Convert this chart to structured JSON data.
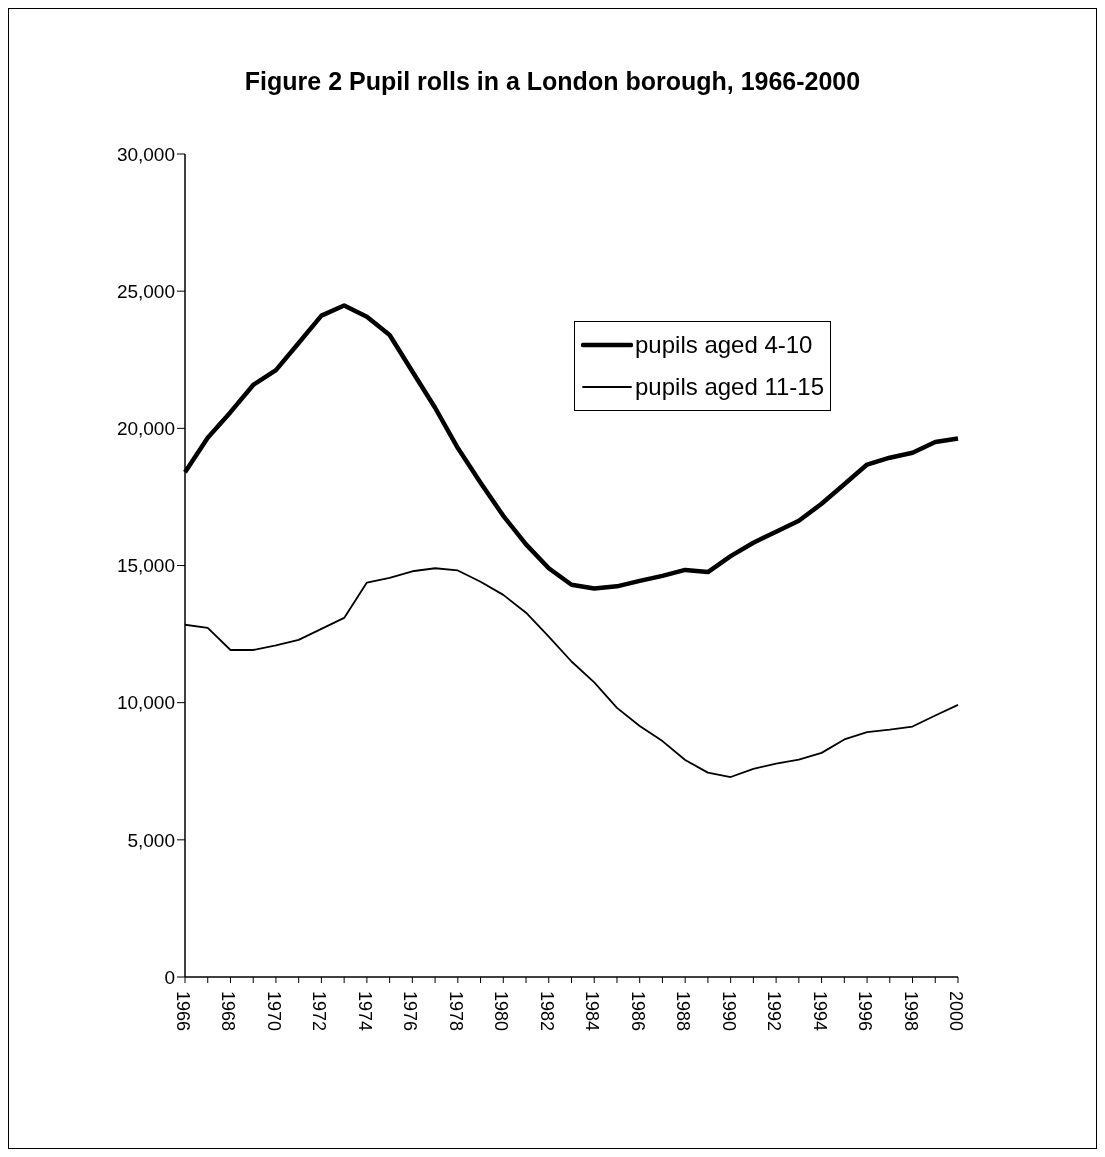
{
  "chart_data": {
    "type": "line",
    "title": "Figure 2 Pupil rolls in a London borough, 1966-2000",
    "categories": [
      "1966",
      null,
      "1968",
      null,
      "1970",
      null,
      "1972",
      null,
      "1974",
      null,
      "1976",
      null,
      "1978",
      null,
      "1980",
      null,
      "1982",
      null,
      "1984",
      null,
      "1986",
      null,
      "1988",
      null,
      "1990",
      null,
      "1992",
      null,
      "1994",
      null,
      "1996",
      null,
      "1998",
      null,
      "2000"
    ],
    "series": [
      {
        "name": "pupils aged 4-10",
        "color": "#000000",
        "values": [
          18400,
          19660,
          20590,
          21580,
          22120,
          23110,
          24110,
          24480,
          24070,
          23400,
          22070,
          20750,
          19280,
          18020,
          16810,
          15770,
          14900,
          14300,
          14160,
          14240,
          14440,
          14620,
          14840,
          14760,
          15340,
          15830,
          16230,
          16630,
          17250,
          17960,
          18680,
          18930,
          19110,
          19500,
          19630
        ]
      },
      {
        "name": "pupils aged 11-15",
        "color": "#000000",
        "values": [
          12840,
          12730,
          11920,
          11920,
          12090,
          12290,
          12690,
          13090,
          14380,
          14550,
          14790,
          14900,
          14820,
          14410,
          13930,
          13280,
          12410,
          11500,
          10740,
          9810,
          9150,
          8600,
          7910,
          7450,
          7290,
          7590,
          7780,
          7920,
          8170,
          8660,
          8930,
          9020,
          9130,
          9530,
          9920
        ]
      }
    ],
    "ylim": [
      0,
      30000
    ],
    "yticks": [
      0,
      {
        "value": 5000,
        "label": "5,000"
      },
      {
        "value": 10000,
        "label": "10,000"
      },
      {
        "value": 15000,
        "label": "15,000"
      },
      {
        "value": 20000,
        "label": "20,000"
      },
      {
        "value": 25000,
        "label": "25,000"
      },
      {
        "value": 30000,
        "label": "30,000"
      }
    ],
    "legend": "top right",
    "grid": false,
    "marker": "none",
    "line_style": "solid"
  }
}
